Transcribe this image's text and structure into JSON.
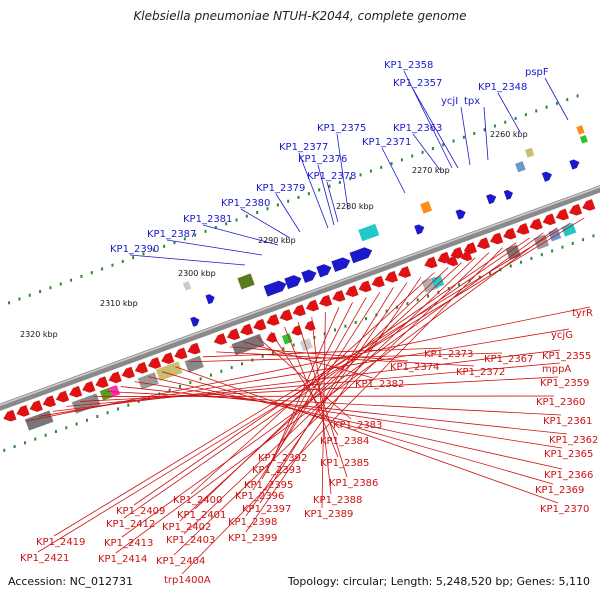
{
  "title": "Klebsiella pneumoniae NTUH-K2044, complete genome",
  "footer": {
    "accession": "Accession: NC_012731",
    "summary": "Topology: circular; Length: 5,248,520 bp; Genes: 5,110"
  },
  "colors": {
    "plus_strand": "#1a1acc",
    "minus_strand": "#e21010",
    "label_blue": "#1a1acc",
    "label_red": "#cc1111",
    "backbone": "#888888",
    "tick": "#2a8a2a"
  },
  "ticks": [
    "2260 kbp",
    "2270 kbp",
    "2280 kbp",
    "2290 kbp",
    "2300 kbp",
    "2310 kbp",
    "2320 kbp"
  ],
  "labels_plus": [
    "pspF",
    "KP1_2358",
    "KP1_2357",
    "ycjI",
    "tpx",
    "KP1_2348",
    "KP1_2363",
    "KP1_2375",
    "KP1_2371",
    "KP1_2377",
    "KP1_2376",
    "KP1_2378",
    "KP1_2379",
    "KP1_2380",
    "KP1_2381",
    "KP1_2387",
    "KP1_2390"
  ],
  "labels_minus": [
    "tyrR",
    "ycjG",
    "KP1_2355",
    "mppA",
    "KP1_2359",
    "KP1_2360",
    "KP1_2361",
    "KP1_2362",
    "KP1_2365",
    "KP1_2366",
    "KP1_2369",
    "KP1_2370",
    "KP1_2367",
    "KP1_2373",
    "KP1_2372",
    "KP1_2374",
    "KP1_2382",
    "KP1_2383",
    "KP1_2384",
    "KP1_2385",
    "KP1_2386",
    "KP1_2388",
    "KP1_2389",
    "KP1_2392",
    "KP1_2393",
    "KP1_2395",
    "KP1_2396",
    "KP1_2397",
    "KP1_2398",
    "KP1_2399",
    "KP1_2400",
    "KP1_2401",
    "KP1_2402",
    "KP1_2403",
    "KP1_2404",
    "trp1400A",
    "KP1_2409",
    "KP1_2412",
    "KP1_2413",
    "KP1_2414",
    "KP1_2419",
    "KP1_2421"
  ]
}
